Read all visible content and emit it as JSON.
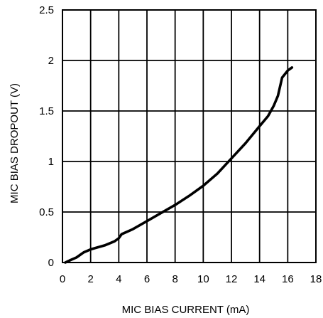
{
  "chart_data": {
    "type": "line",
    "title": "",
    "xlabel": "MIC BIAS CURRENT (mA)",
    "ylabel": "MIC BIAS DROPOUT (V)",
    "xlim": [
      0,
      18
    ],
    "ylim": [
      0,
      2.5
    ],
    "x_ticks": [
      "0",
      "2",
      "4",
      "6",
      "8",
      "10",
      "12",
      "14",
      "16",
      "18"
    ],
    "y_ticks": [
      "0",
      "0.5",
      "1",
      "1.5",
      "2",
      "2.5"
    ],
    "grid": true,
    "series": [
      {
        "color": "#000000",
        "x": [
          0.2,
          0.5,
          1.0,
          1.3,
          1.5,
          2.0,
          3.0,
          3.7,
          4.0,
          4.2,
          5.0,
          6.0,
          7.0,
          8.0,
          9.0,
          10.0,
          11.0,
          12.0,
          13.0,
          14.0,
          14.6,
          15.0,
          15.3,
          15.6,
          16.0,
          16.3
        ],
        "y": [
          0.0,
          0.02,
          0.05,
          0.08,
          0.1,
          0.13,
          0.17,
          0.21,
          0.24,
          0.28,
          0.33,
          0.41,
          0.49,
          0.57,
          0.66,
          0.76,
          0.88,
          1.03,
          1.18,
          1.35,
          1.45,
          1.55,
          1.65,
          1.83,
          1.9,
          1.93
        ]
      }
    ]
  }
}
